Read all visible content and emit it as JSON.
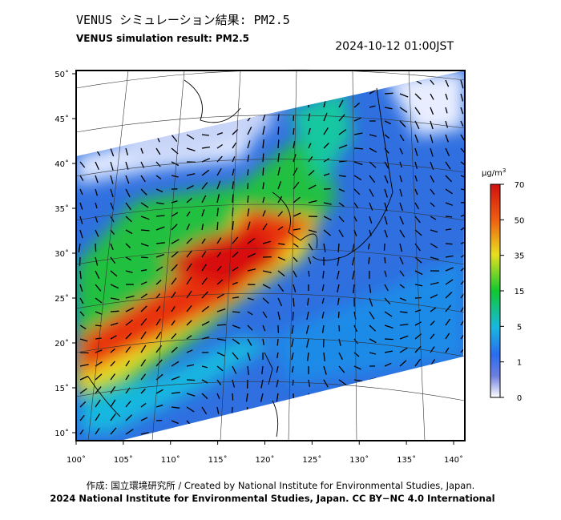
{
  "header": {
    "title_ja": "VENUS シミュレーション結果: PM2.5",
    "title_en": "VENUS simulation result: PM2.5",
    "datetime": "2024-10-12 01:00JST"
  },
  "map": {
    "lat_ticks": [
      {
        "value": 50,
        "label": "50˚"
      },
      {
        "value": 45,
        "label": "45˚"
      },
      {
        "value": 40,
        "label": "40˚"
      },
      {
        "value": 35,
        "label": "35˚"
      },
      {
        "value": 30,
        "label": "30˚"
      },
      {
        "value": 25,
        "label": "25˚"
      },
      {
        "value": 20,
        "label": "20˚"
      },
      {
        "value": 15,
        "label": "15˚"
      },
      {
        "value": 10,
        "label": "10˚"
      }
    ],
    "lon_ticks": [
      {
        "value": 100,
        "label": "100˚"
      },
      {
        "value": 105,
        "label": "105˚"
      },
      {
        "value": 110,
        "label": "110˚"
      },
      {
        "value": 115,
        "label": "115˚"
      },
      {
        "value": 120,
        "label": "120˚"
      },
      {
        "value": 125,
        "label": "125˚"
      },
      {
        "value": 130,
        "label": "130˚"
      },
      {
        "value": 135,
        "label": "135˚"
      },
      {
        "value": 140,
        "label": "140˚"
      }
    ]
  },
  "colorbar": {
    "unit_base": "μg/m",
    "unit_exp": "3",
    "ticks": [
      0,
      1,
      5,
      15,
      35,
      50,
      70
    ]
  },
  "footer": {
    "credit_ja": "作成: 国立環境研究所 / Created by National Institute for Environmental Studies, Japan.",
    "license": "2024 National Institute for Environmental Studies, Japan. CC BY−NC 4.0 International"
  }
}
